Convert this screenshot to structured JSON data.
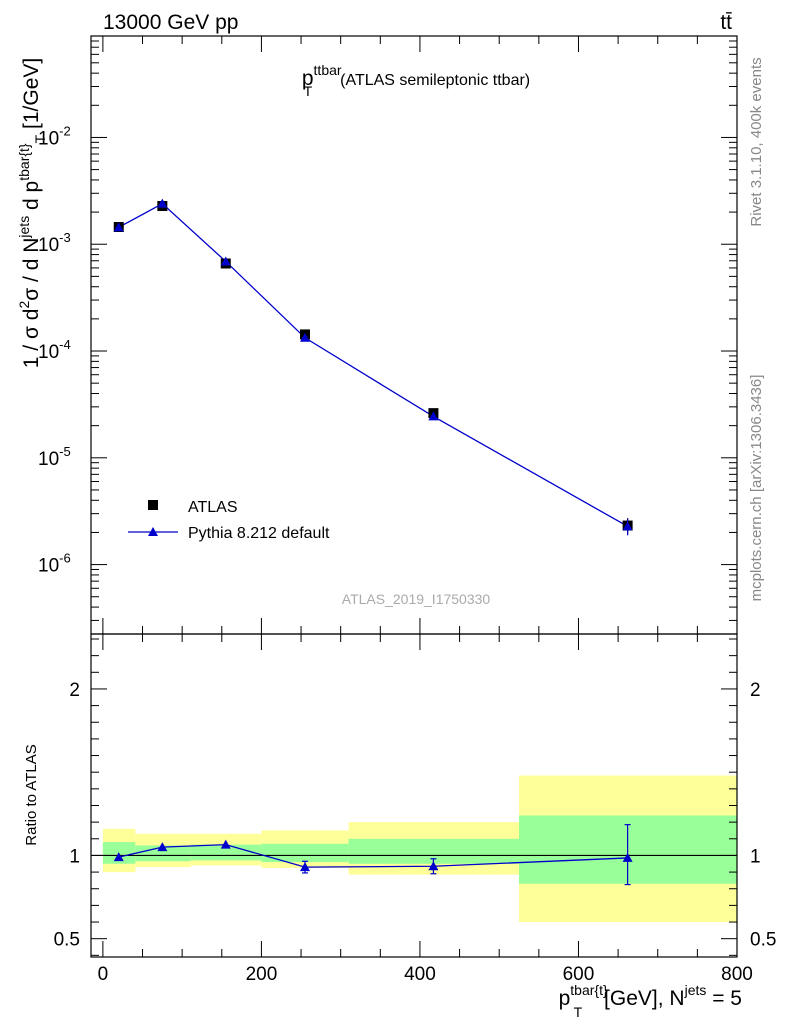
{
  "header": {
    "left_label": "13000 GeV pp",
    "right_label": "tt̄"
  },
  "side_labels": {
    "rivet": "Rivet 3.1.10,  400k events",
    "mcplots": "mcplots.cern.ch [arXiv:1306.3436]"
  },
  "chart_data": [
    {
      "type": "scatter",
      "title_main": "p",
      "title_sup": "ttbar",
      "title_sub": "T",
      "title_rest": "(ATLAS semileptonic ttbar)",
      "watermark": "ATLAS_2019_I1750330",
      "ylabel_parts": {
        "a": "1 / σ d",
        "b": "2",
        "c": "σ / d N",
        "d": "jets",
        "e": " d p",
        "f": "tbar{t}",
        "g": "T",
        "h": " [1/GeV]"
      },
      "yscale": "log",
      "xlim": [
        -15,
        800
      ],
      "ylim_log10": [
        -6.65,
        -1.05
      ],
      "ytick_exponents": [
        "-6",
        "-5",
        "-4",
        "-3",
        "-2"
      ],
      "legend": [
        {
          "name": "ATLAS",
          "marker": "square",
          "color": "#000000"
        },
        {
          "name": "Pythia 8.212 default",
          "marker": "triangle",
          "color": "#0000cc"
        }
      ],
      "series": [
        {
          "name": "ATLAS",
          "x": [
            20,
            75,
            155,
            255,
            417,
            662
          ],
          "y": [
            0.00145,
            0.00228,
            0.00066,
            0.000143,
            2.62e-05,
            2.32e-06
          ],
          "err_lo": [
            8e-05,
            0.00014,
            4e-05,
            1.2e-05,
            2.2e-06,
            4e-07
          ],
          "err_hi": [
            8e-05,
            0.00014,
            4e-05,
            1.2e-05,
            2.2e-06,
            4e-07
          ]
        },
        {
          "name": "Pythia 8.212 default",
          "x": [
            20,
            75,
            155,
            255,
            417,
            662
          ],
          "y": [
            0.00144,
            0.0024,
            0.00069,
            0.000133,
            2.44e-05,
            2.28e-06
          ],
          "err_lo": [
            3e-05,
            5e-05,
            2e-05,
            5e-06,
            1e-06,
            4e-07
          ],
          "err_hi": [
            3e-05,
            5e-05,
            2e-05,
            5e-06,
            1e-06,
            4e-07
          ]
        }
      ]
    },
    {
      "type": "line",
      "ylabel": "Ratio to ATLAS",
      "xlabel_parts": {
        "a": "p",
        "b": "tbar{t}",
        "c": "T",
        "d": " [GeV], N",
        "e": "jets",
        "f": " = 5"
      },
      "xlim": [
        -15,
        800
      ],
      "ylim": [
        0.39,
        2.33
      ],
      "xticks": [
        0,
        200,
        400,
        600,
        800
      ],
      "yticks": [
        "0.5",
        "1",
        "2"
      ],
      "bands": [
        {
          "x0": 0,
          "x1": 41,
          "yellow": [
            0.9,
            1.16
          ],
          "green": [
            0.95,
            1.08
          ]
        },
        {
          "x0": 41,
          "x1": 111,
          "yellow": [
            0.93,
            1.13
          ],
          "green": [
            0.965,
            1.06
          ]
        },
        {
          "x0": 111,
          "x1": 200,
          "yellow": [
            0.94,
            1.13
          ],
          "green": [
            0.97,
            1.065
          ]
        },
        {
          "x0": 200,
          "x1": 310,
          "yellow": [
            0.925,
            1.15
          ],
          "green": [
            0.96,
            1.07
          ]
        },
        {
          "x0": 310,
          "x1": 525,
          "yellow": [
            0.885,
            1.2
          ],
          "green": [
            0.95,
            1.1
          ]
        },
        {
          "x0": 525,
          "x1": 800,
          "yellow": [
            0.6,
            1.48
          ],
          "green": [
            0.83,
            1.24
          ]
        }
      ],
      "series": [
        {
          "name": "Pythia 8.212 default",
          "x": [
            20,
            75,
            155,
            255,
            417,
            662
          ],
          "y": [
            0.99,
            1.05,
            1.065,
            0.93,
            0.935,
            0.985
          ],
          "err_lo": [
            0.01,
            0.01,
            0.01,
            0.035,
            0.045,
            0.16
          ],
          "err_hi": [
            0.01,
            0.01,
            0.01,
            0.035,
            0.045,
            0.2
          ]
        }
      ]
    }
  ]
}
